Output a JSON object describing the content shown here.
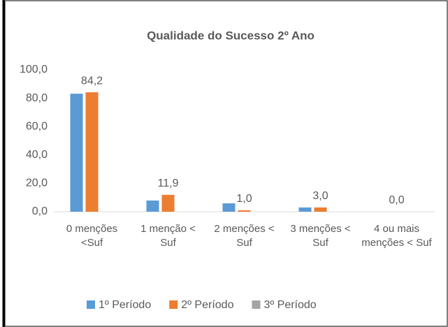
{
  "chart_data": {
    "type": "bar",
    "title": "Qualidade do Sucesso 2º Ano",
    "categories": [
      "0 menções <Suf",
      "1 menção < Suf",
      "2 menções < Suf",
      "3 menções < Suf",
      "4 ou mais menções < Suf"
    ],
    "series": [
      {
        "name": "1º Período",
        "color": "#5b9bd5",
        "values": [
          83.2,
          7.9,
          5.9,
          3.0,
          0.0
        ]
      },
      {
        "name": "2º Período",
        "color": "#ed7d31",
        "values": [
          84.2,
          11.9,
          1.0,
          3.0,
          0.0
        ],
        "value_labels": [
          "84,2",
          "11,9",
          "1,0",
          "3,0",
          "0,0"
        ]
      },
      {
        "name": "3º Período",
        "color": "#a5a5a5",
        "values": [
          null,
          null,
          null,
          null,
          null
        ]
      }
    ],
    "ylim": [
      0,
      100
    ],
    "yticks": [
      {
        "value": 0,
        "label": "0,0"
      },
      {
        "value": 20,
        "label": "20,0"
      },
      {
        "value": 40,
        "label": "40,0"
      },
      {
        "value": 60,
        "label": "60,0"
      },
      {
        "value": 80,
        "label": "80,0"
      },
      {
        "value": 100,
        "label": "100,0"
      }
    ],
    "grid": false,
    "legend": "bottom"
  }
}
